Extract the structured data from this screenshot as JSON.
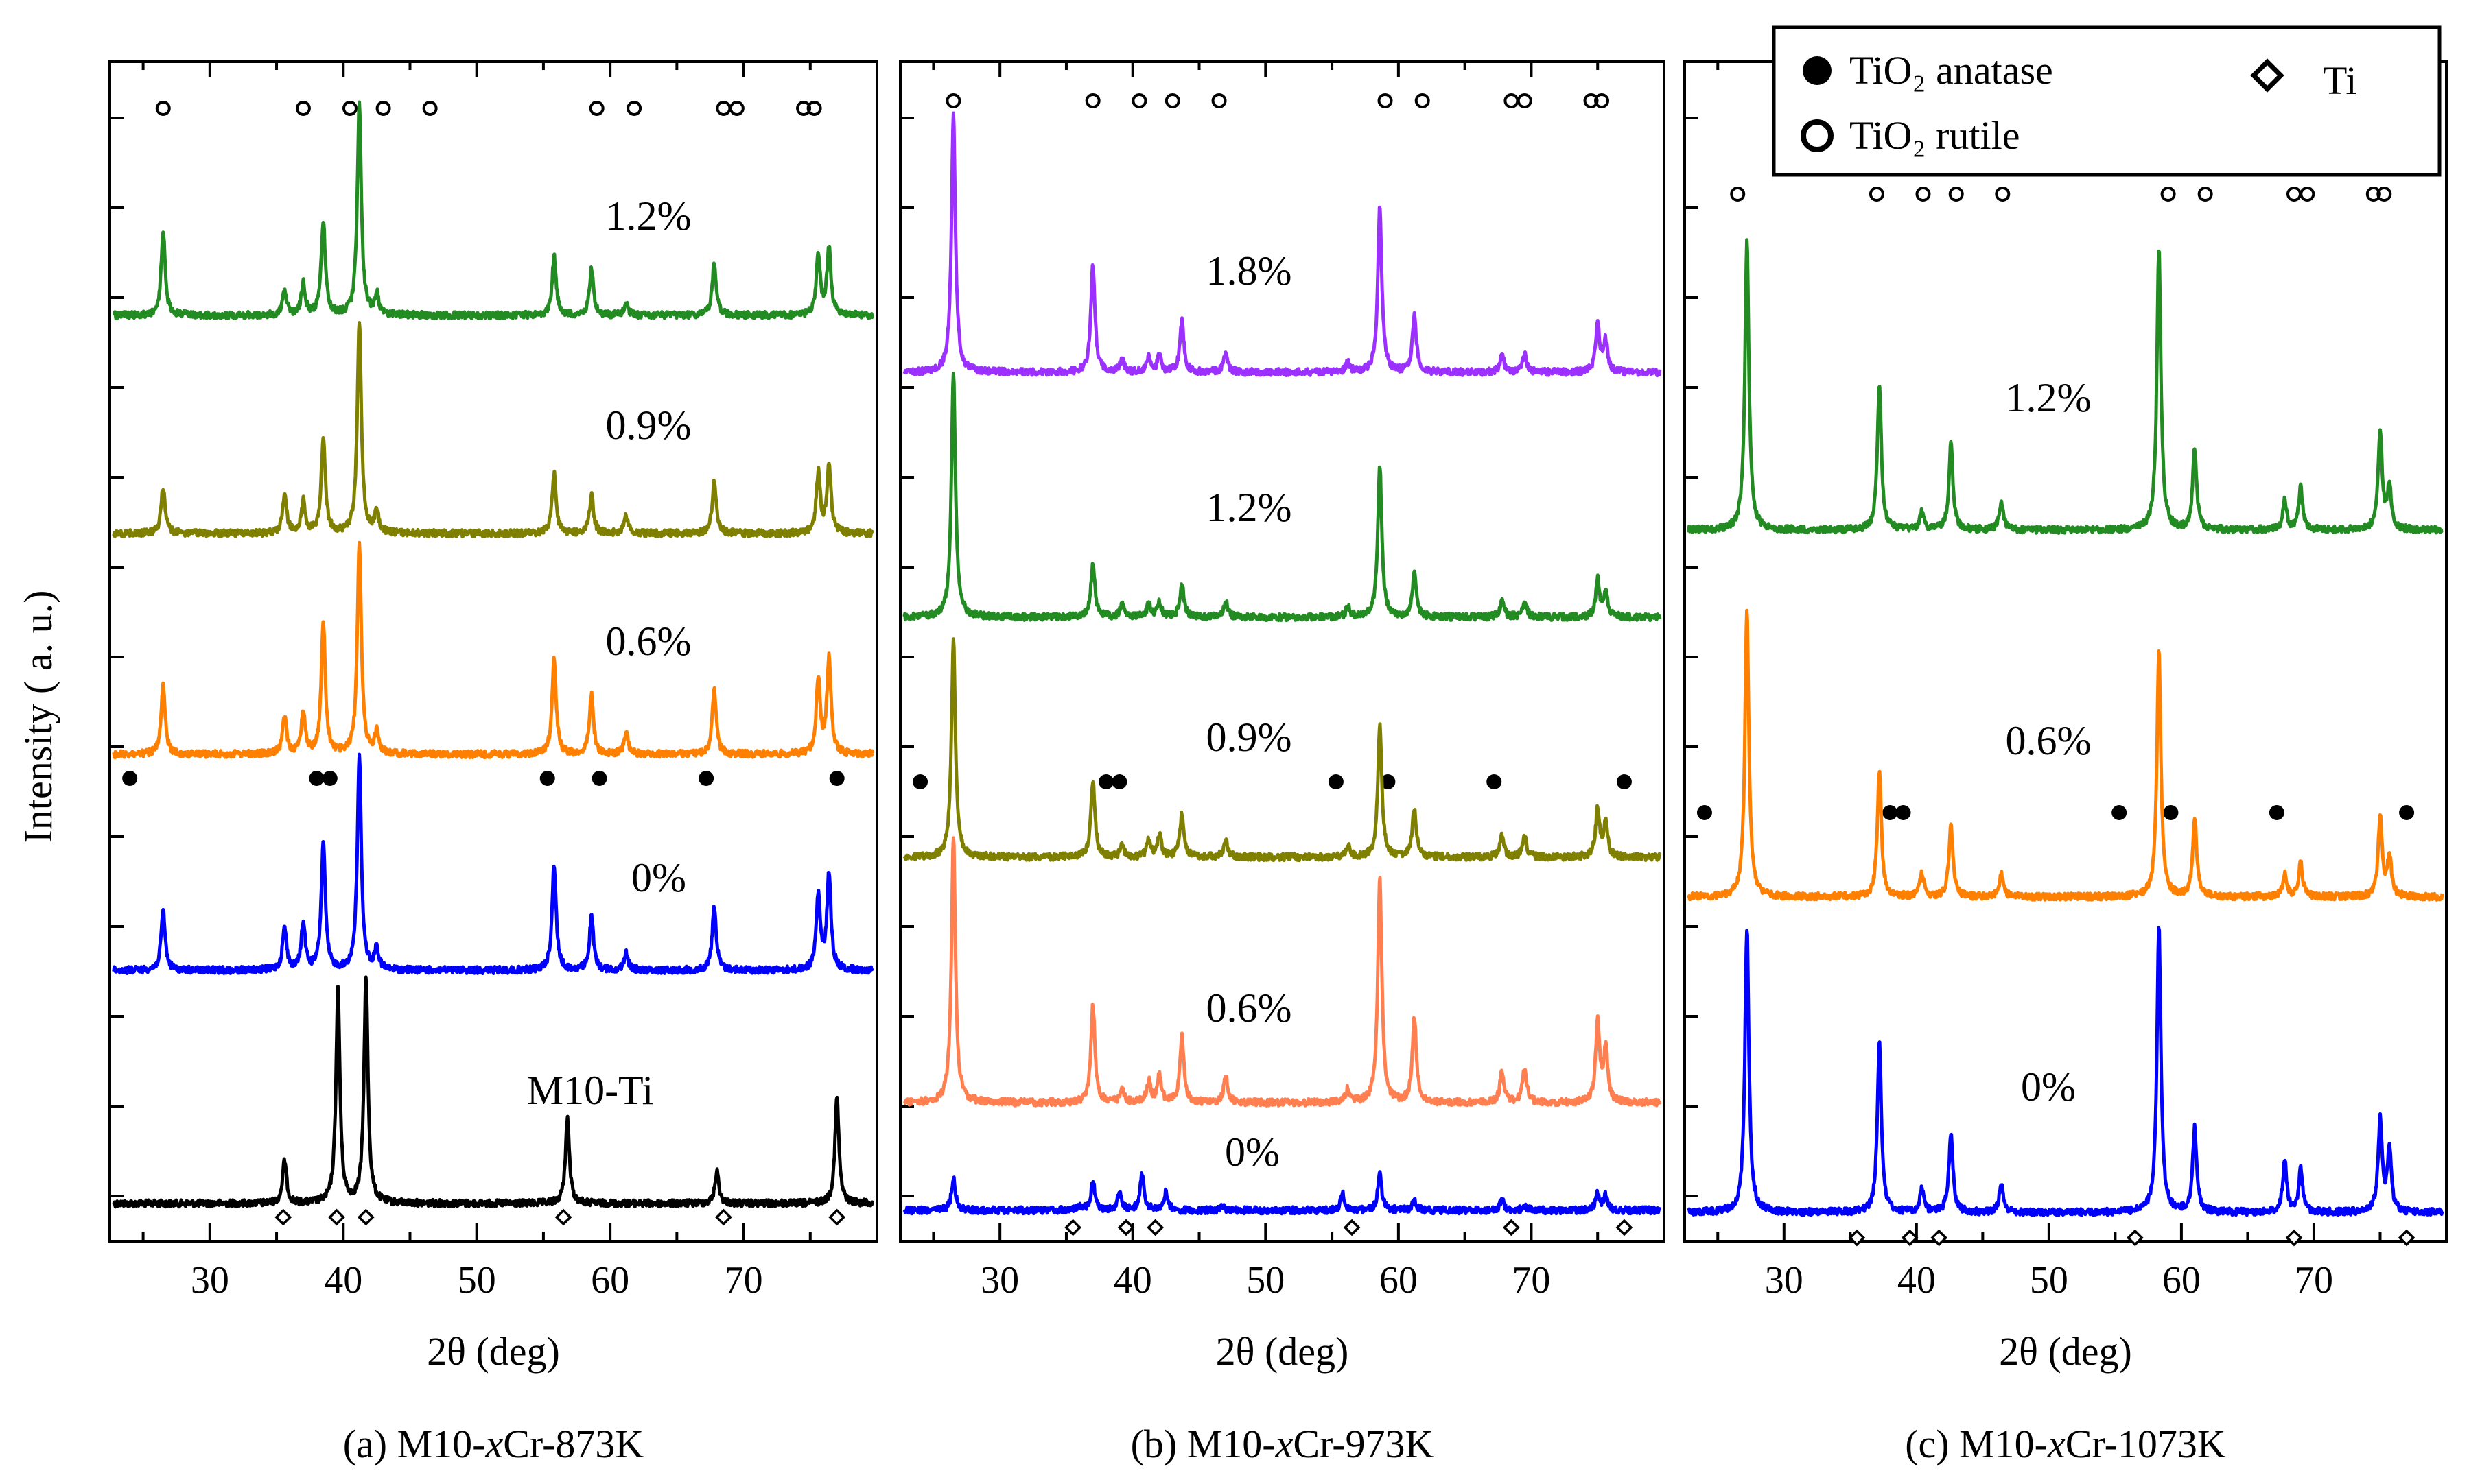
{
  "y_axis_label": "Intensity ( a. u.)",
  "legend": {
    "anatase": "TiO₂ anatase",
    "rutile": "TiO₂ rutile",
    "ti": "Ti"
  },
  "chart_data": [
    {
      "id": "a",
      "type": "line",
      "caption": "(a) M10-xCr-873K",
      "caption_parts": [
        "(a) M10-",
        "x",
        "Cr-873K"
      ],
      "xlabel": "2θ (deg)",
      "ylabel": "Intensity ( a. u.)",
      "xlim": [
        22.5,
        80
      ],
      "xticks": [
        30,
        40,
        50,
        60,
        70
      ],
      "rutile_positions": [
        26.5,
        37.0,
        40.5,
        43.0,
        46.5,
        59.0,
        61.8,
        68.5,
        69.5,
        74.5,
        75.3
      ],
      "anatase_positions": [
        24.0,
        38.0,
        39.0,
        55.3,
        59.2,
        67.2,
        77.0
      ],
      "ti_positions": [
        35.5,
        39.5,
        41.7,
        56.5,
        68.5,
        77.0
      ],
      "series": [
        {
          "name": "M10-Ti",
          "label": "M10-Ti",
          "color": "#000000",
          "peaks": [
            [
              35.6,
              0.2
            ],
            [
              39.6,
              1.0
            ],
            [
              41.7,
              1.05
            ],
            [
              56.8,
              0.4
            ],
            [
              68.0,
              0.15
            ],
            [
              77.0,
              0.5
            ]
          ]
        },
        {
          "name": "0%",
          "label": "0%",
          "color": "#0000ff",
          "peaks": [
            [
              26.5,
              0.28
            ],
            [
              35.6,
              0.2
            ],
            [
              37.0,
              0.22
            ],
            [
              38.5,
              0.6
            ],
            [
              41.2,
              1.0
            ],
            [
              42.5,
              0.1
            ],
            [
              55.8,
              0.5
            ],
            [
              58.6,
              0.25
            ],
            [
              61.2,
              0.08
            ],
            [
              67.8,
              0.3
            ],
            [
              75.6,
              0.35
            ],
            [
              76.4,
              0.45
            ]
          ]
        },
        {
          "name": "0.6%",
          "label": "0.6%",
          "color": "#ff8000",
          "peaks": [
            [
              26.5,
              0.32
            ],
            [
              35.6,
              0.18
            ],
            [
              37.0,
              0.2
            ],
            [
              38.5,
              0.62
            ],
            [
              41.2,
              1.0
            ],
            [
              42.5,
              0.1
            ],
            [
              55.8,
              0.45
            ],
            [
              58.6,
              0.28
            ],
            [
              61.2,
              0.1
            ],
            [
              67.8,
              0.3
            ],
            [
              75.6,
              0.35
            ],
            [
              76.4,
              0.45
            ]
          ]
        },
        {
          "name": "0.9%",
          "label": "0.9%",
          "color": "#808000",
          "peaks": [
            [
              26.5,
              0.22
            ],
            [
              35.6,
              0.18
            ],
            [
              37.0,
              0.15
            ],
            [
              38.5,
              0.45
            ],
            [
              41.2,
              1.0
            ],
            [
              42.5,
              0.1
            ],
            [
              55.8,
              0.28
            ],
            [
              58.6,
              0.18
            ],
            [
              61.2,
              0.08
            ],
            [
              67.8,
              0.25
            ],
            [
              75.6,
              0.28
            ],
            [
              76.4,
              0.32
            ]
          ]
        },
        {
          "name": "1.2%",
          "label": "1.2%",
          "color": "#228B22",
          "peaks": [
            [
              26.5,
              0.4
            ],
            [
              35.6,
              0.12
            ],
            [
              37.0,
              0.15
            ],
            [
              38.5,
              0.45
            ],
            [
              41.2,
              1.0
            ],
            [
              42.5,
              0.1
            ],
            [
              55.8,
              0.28
            ],
            [
              58.6,
              0.22
            ],
            [
              61.2,
              0.06
            ],
            [
              67.8,
              0.25
            ],
            [
              75.6,
              0.28
            ],
            [
              76.4,
              0.32
            ]
          ]
        }
      ]
    },
    {
      "id": "b",
      "type": "line",
      "caption": "(b) M10-xCr-973K",
      "caption_parts": [
        "(b) M10-",
        "x",
        "Cr-973K"
      ],
      "xlabel": "2θ (deg)",
      "xlim": [
        22.5,
        80
      ],
      "xticks": [
        30,
        40,
        50,
        60,
        70
      ],
      "rutile_positions": [
        26.5,
        37.0,
        40.5,
        43.0,
        46.5,
        59.0,
        61.8,
        68.5,
        69.5,
        74.5,
        75.3
      ],
      "anatase_positions": [
        24.0,
        38.0,
        39.0,
        55.3,
        59.2,
        67.2,
        77.0
      ],
      "ti_positions": [
        35.5,
        39.5,
        41.7,
        56.5,
        68.5,
        77.0
      ],
      "series": [
        {
          "name": "0%",
          "label": "0%",
          "color": "#0000ff",
          "peaks": [
            [
              26.5,
              0.35
            ],
            [
              36.0,
              0.05
            ],
            [
              37.0,
              0.33
            ],
            [
              39.0,
              0.2
            ],
            [
              40.7,
              0.4
            ],
            [
              42.5,
              0.2
            ],
            [
              46.7,
              0.05
            ],
            [
              55.8,
              0.18
            ],
            [
              58.6,
              0.4
            ],
            [
              61.2,
              0.1
            ],
            [
              67.8,
              0.12
            ],
            [
              69.5,
              0.05
            ],
            [
              75.0,
              0.18
            ],
            [
              75.6,
              0.16
            ]
          ]
        },
        {
          "name": "0.6%",
          "label": "0.6%",
          "color": "#ff7f50",
          "peaks": [
            [
              26.5,
              1.0
            ],
            [
              37.0,
              0.37
            ],
            [
              39.2,
              0.05
            ],
            [
              41.2,
              0.08
            ],
            [
              42.0,
              0.1
            ],
            [
              43.7,
              0.25
            ],
            [
              47.0,
              0.1
            ],
            [
              56.2,
              0.05
            ],
            [
              58.6,
              0.85
            ],
            [
              61.2,
              0.32
            ],
            [
              67.8,
              0.12
            ],
            [
              69.5,
              0.13
            ],
            [
              75.0,
              0.3
            ],
            [
              75.6,
              0.2
            ]
          ]
        },
        {
          "name": "0.9%",
          "label": "0.9%",
          "color": "#808000",
          "peaks": [
            [
              26.5,
              1.0
            ],
            [
              37.0,
              0.35
            ],
            [
              39.2,
              0.05
            ],
            [
              41.2,
              0.08
            ],
            [
              42.0,
              0.1
            ],
            [
              43.7,
              0.2
            ],
            [
              47.0,
              0.08
            ],
            [
              56.2,
              0.05
            ],
            [
              58.6,
              0.6
            ],
            [
              61.2,
              0.22
            ],
            [
              67.8,
              0.1
            ],
            [
              69.5,
              0.1
            ],
            [
              75.0,
              0.22
            ],
            [
              75.6,
              0.15
            ]
          ]
        },
        {
          "name": "1.2%",
          "label": "1.2%",
          "color": "#228B22",
          "peaks": [
            [
              26.5,
              1.0
            ],
            [
              37.0,
              0.22
            ],
            [
              39.2,
              0.05
            ],
            [
              41.2,
              0.05
            ],
            [
              42.0,
              0.06
            ],
            [
              43.7,
              0.14
            ],
            [
              47.0,
              0.06
            ],
            [
              56.2,
              0.04
            ],
            [
              58.6,
              0.62
            ],
            [
              61.2,
              0.18
            ],
            [
              67.8,
              0.07
            ],
            [
              69.5,
              0.07
            ],
            [
              75.0,
              0.15
            ],
            [
              75.6,
              0.1
            ]
          ]
        },
        {
          "name": "1.8%",
          "label": "1.8%",
          "color": "#9b30ff",
          "peaks": [
            [
              26.5,
              1.0
            ],
            [
              37.0,
              0.42
            ],
            [
              39.2,
              0.05
            ],
            [
              41.2,
              0.06
            ],
            [
              42.0,
              0.06
            ],
            [
              43.7,
              0.2
            ],
            [
              47.0,
              0.08
            ],
            [
              56.2,
              0.04
            ],
            [
              58.6,
              0.65
            ],
            [
              61.2,
              0.22
            ],
            [
              67.8,
              0.07
            ],
            [
              69.5,
              0.07
            ],
            [
              75.0,
              0.18
            ],
            [
              75.6,
              0.12
            ]
          ]
        }
      ]
    },
    {
      "id": "c",
      "type": "line",
      "caption": "(c) M10-xCr-1073K",
      "caption_parts": [
        "(c) M10-",
        "x",
        "Cr-1073K"
      ],
      "xlabel": "2θ (deg)",
      "xlim": [
        22.5,
        80
      ],
      "xticks": [
        30,
        40,
        50,
        60,
        70
      ],
      "rutile_positions": [
        26.5,
        37.0,
        40.5,
        43.0,
        46.5,
        59.0,
        61.8,
        68.5,
        69.5,
        74.5,
        75.3
      ],
      "anatase_positions": [
        24.0,
        38.0,
        39.0,
        55.3,
        59.2,
        67.2,
        77.0
      ],
      "ti_positions": [
        35.5,
        39.5,
        41.7,
        56.5,
        68.5,
        77.0
      ],
      "series": [
        {
          "name": "0%",
          "label": "0%",
          "color": "#0000ff",
          "peaks": [
            [
              27.2,
              1.0
            ],
            [
              37.2,
              0.6
            ],
            [
              40.4,
              0.08
            ],
            [
              42.6,
              0.28
            ],
            [
              46.4,
              0.1
            ],
            [
              58.3,
              1.0
            ],
            [
              61.0,
              0.3
            ],
            [
              67.8,
              0.18
            ],
            [
              69.0,
              0.15
            ],
            [
              75.0,
              0.32
            ],
            [
              75.7,
              0.22
            ]
          ]
        },
        {
          "name": "0.6%",
          "label": "0.6%",
          "color": "#ff8000",
          "peaks": [
            [
              27.2,
              1.0
            ],
            [
              37.2,
              0.45
            ],
            [
              40.4,
              0.08
            ],
            [
              42.6,
              0.26
            ],
            [
              46.4,
              0.08
            ],
            [
              58.3,
              0.86
            ],
            [
              61.0,
              0.28
            ],
            [
              67.8,
              0.08
            ],
            [
              69.0,
              0.12
            ],
            [
              75.0,
              0.28
            ],
            [
              75.7,
              0.14
            ]
          ]
        },
        {
          "name": "1.2%",
          "label": "1.2%",
          "color": "#228B22",
          "peaks": [
            [
              27.2,
              1.0
            ],
            [
              37.2,
              0.5
            ],
            [
              40.4,
              0.06
            ],
            [
              42.6,
              0.3
            ],
            [
              46.4,
              0.1
            ],
            [
              58.3,
              0.98
            ],
            [
              61.0,
              0.28
            ],
            [
              67.8,
              0.1
            ],
            [
              69.0,
              0.15
            ],
            [
              75.0,
              0.35
            ],
            [
              75.7,
              0.15
            ]
          ]
        }
      ]
    }
  ]
}
